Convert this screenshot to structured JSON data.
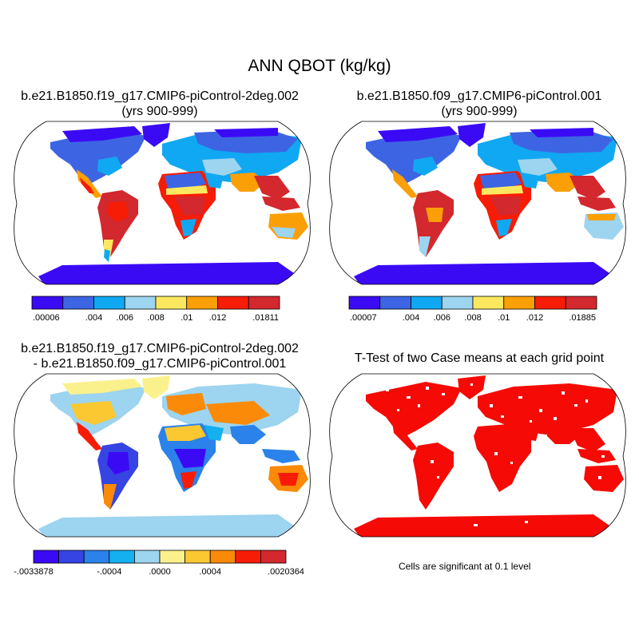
{
  "figure": {
    "title": "ANN QBOT (kg/kg)",
    "note": "Cells are significant at 0.1 level"
  },
  "panels": {
    "case1": {
      "title_line1": "b.e21.B1850.f19_g17.CMIP6-piControl-2deg.002",
      "title_line2": "(yrs 900-999)",
      "colorbar": {
        "colors": [
          "#3b0af5",
          "#3d65e3",
          "#10a8f2",
          "#9dd4ef",
          "#fbe85f",
          "#fb9f06",
          "#f71c05",
          "#d2282e"
        ],
        "labels": [
          ".00006",
          ".004",
          ".006",
          ".008",
          ".01",
          ".012",
          ".01811"
        ]
      }
    },
    "case2": {
      "title_line1": "b.e21.B1850.f09_g17.CMIP6-piControl.001",
      "title_line2": "(yrs 900-999)",
      "colorbar": {
        "colors": [
          "#3b0af5",
          "#3d65e3",
          "#10a8f2",
          "#9dd4ef",
          "#fbe85f",
          "#fb9f06",
          "#f71c05",
          "#d2282e"
        ],
        "labels": [
          ".00007",
          ".004",
          ".006",
          ".008",
          ".01",
          ".012",
          ".01885"
        ]
      }
    },
    "diff": {
      "title_line1": "b.e21.B1850.f19_g17.CMIP6-piControl-2deg.002",
      "title_line2": "- b.e21.B1850.f09_g17.CMIP6-piControl.001",
      "colorbar": {
        "colors": [
          "#3b0af5",
          "#3544e2",
          "#2a82ea",
          "#14b0ef",
          "#9dd4ef",
          "#fbf18c",
          "#fbc832",
          "#fb8a08",
          "#f71c05",
          "#d2282e"
        ],
        "labels": [
          "-.0033878",
          "-.0004",
          ".0000",
          ".0004",
          ".0020364"
        ]
      }
    },
    "ttest": {
      "title": "T-Test of two Case means at each grid point",
      "color": "#f50a05"
    }
  }
}
